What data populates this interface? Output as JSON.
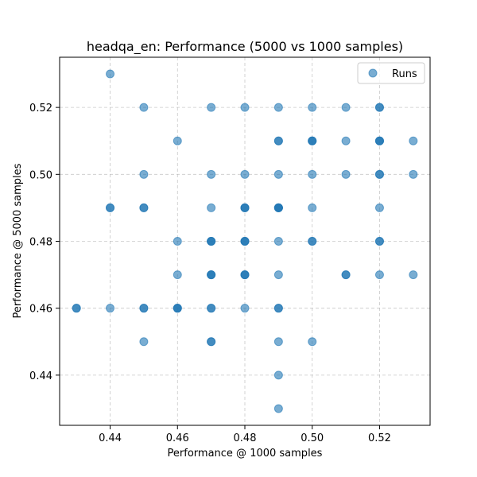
{
  "chart_data": {
    "type": "scatter",
    "title": "headqa_en: Performance (5000 vs 1000 samples)",
    "xlabel": "Performance @ 1000 samples",
    "ylabel": "Performance @ 5000 samples",
    "xlim": [
      0.425,
      0.535
    ],
    "ylim": [
      0.425,
      0.535
    ],
    "xticks": [
      "0.44",
      "0.46",
      "0.48",
      "0.50",
      "0.52"
    ],
    "yticks": [
      "0.44",
      "0.46",
      "0.48",
      "0.50",
      "0.52"
    ],
    "grid": true,
    "legend_position": "top-right",
    "series": [
      {
        "name": "Runs",
        "color": "#1f77b4",
        "points": [
          [
            0.43,
            0.46
          ],
          [
            0.43,
            0.46
          ],
          [
            0.44,
            0.53
          ],
          [
            0.44,
            0.49
          ],
          [
            0.44,
            0.49
          ],
          [
            0.44,
            0.46
          ],
          [
            0.45,
            0.52
          ],
          [
            0.45,
            0.5
          ],
          [
            0.45,
            0.49
          ],
          [
            0.45,
            0.49
          ],
          [
            0.45,
            0.46
          ],
          [
            0.45,
            0.46
          ],
          [
            0.45,
            0.45
          ],
          [
            0.46,
            0.51
          ],
          [
            0.46,
            0.48
          ],
          [
            0.46,
            0.47
          ],
          [
            0.46,
            0.46
          ],
          [
            0.46,
            0.46
          ],
          [
            0.46,
            0.46
          ],
          [
            0.47,
            0.52
          ],
          [
            0.47,
            0.5
          ],
          [
            0.47,
            0.49
          ],
          [
            0.47,
            0.48
          ],
          [
            0.47,
            0.48
          ],
          [
            0.47,
            0.48
          ],
          [
            0.47,
            0.47
          ],
          [
            0.47,
            0.47
          ],
          [
            0.47,
            0.47
          ],
          [
            0.47,
            0.46
          ],
          [
            0.47,
            0.46
          ],
          [
            0.47,
            0.45
          ],
          [
            0.47,
            0.45
          ],
          [
            0.48,
            0.52
          ],
          [
            0.48,
            0.5
          ],
          [
            0.48,
            0.49
          ],
          [
            0.48,
            0.49
          ],
          [
            0.48,
            0.49
          ],
          [
            0.48,
            0.48
          ],
          [
            0.48,
            0.48
          ],
          [
            0.48,
            0.48
          ],
          [
            0.48,
            0.47
          ],
          [
            0.48,
            0.47
          ],
          [
            0.48,
            0.47
          ],
          [
            0.48,
            0.46
          ],
          [
            0.49,
            0.52
          ],
          [
            0.49,
            0.51
          ],
          [
            0.49,
            0.51
          ],
          [
            0.49,
            0.5
          ],
          [
            0.49,
            0.49
          ],
          [
            0.49,
            0.49
          ],
          [
            0.49,
            0.49
          ],
          [
            0.49,
            0.49
          ],
          [
            0.49,
            0.48
          ],
          [
            0.49,
            0.47
          ],
          [
            0.49,
            0.46
          ],
          [
            0.49,
            0.46
          ],
          [
            0.49,
            0.45
          ],
          [
            0.49,
            0.44
          ],
          [
            0.49,
            0.43
          ],
          [
            0.5,
            0.52
          ],
          [
            0.5,
            0.51
          ],
          [
            0.5,
            0.51
          ],
          [
            0.5,
            0.51
          ],
          [
            0.5,
            0.5
          ],
          [
            0.5,
            0.49
          ],
          [
            0.5,
            0.48
          ],
          [
            0.5,
            0.48
          ],
          [
            0.5,
            0.45
          ],
          [
            0.51,
            0.52
          ],
          [
            0.51,
            0.51
          ],
          [
            0.51,
            0.5
          ],
          [
            0.51,
            0.47
          ],
          [
            0.51,
            0.47
          ],
          [
            0.52,
            0.52
          ],
          [
            0.52,
            0.52
          ],
          [
            0.52,
            0.51
          ],
          [
            0.52,
            0.51
          ],
          [
            0.52,
            0.51
          ],
          [
            0.52,
            0.5
          ],
          [
            0.52,
            0.5
          ],
          [
            0.52,
            0.49
          ],
          [
            0.52,
            0.48
          ],
          [
            0.52,
            0.48
          ],
          [
            0.52,
            0.47
          ],
          [
            0.53,
            0.51
          ],
          [
            0.53,
            0.5
          ],
          [
            0.53,
            0.47
          ]
        ]
      }
    ]
  }
}
